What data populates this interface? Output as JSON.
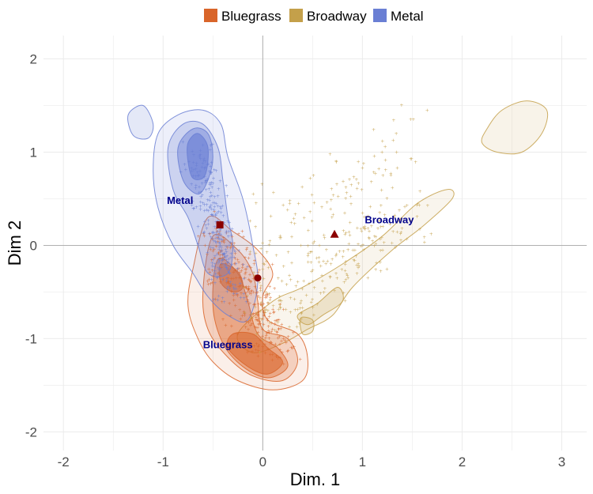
{
  "chart_data": {
    "type": "scatter",
    "xlabel": "Dim. 1",
    "ylabel": "Dim 2",
    "xlim": [
      -2.2,
      3.25
    ],
    "ylim": [
      -2.2,
      2.25
    ],
    "x_ticks": [
      -2,
      -1,
      0,
      1,
      2,
      3
    ],
    "y_ticks": [
      -2,
      -1,
      0,
      1,
      2
    ],
    "x_tick_labels": [
      "-2",
      "-1",
      "0",
      "1",
      "2",
      "3"
    ],
    "y_tick_labels": [
      "-2",
      "-1",
      "0",
      "1",
      "2"
    ],
    "grid": true,
    "legend_position": "top",
    "series": [
      {
        "name": "Bluegrass",
        "color": "#d9652a",
        "centroid": [
          -0.05,
          -0.35
        ],
        "centroid_marker": "circle",
        "label_position": [
          -0.35,
          -1.07
        ],
        "density_core": [
          0.1,
          -1.25
        ],
        "density_core_secondary": [
          -0.25,
          -0.95
        ]
      },
      {
        "name": "Broadway",
        "color": "#c4a04a",
        "centroid": [
          0.72,
          0.12
        ],
        "centroid_marker": "triangle",
        "label_position": [
          1.27,
          0.27
        ],
        "density_core": [
          0.65,
          -0.55
        ],
        "outlier_cluster": [
          2.6,
          1.3
        ]
      },
      {
        "name": "Metal",
        "color": "#6a7fd4",
        "centroid": [
          -0.43,
          0.22
        ],
        "centroid_marker": "square",
        "label_position": [
          -0.83,
          0.48
        ],
        "density_core": [
          -0.65,
          0.95
        ]
      }
    ]
  }
}
